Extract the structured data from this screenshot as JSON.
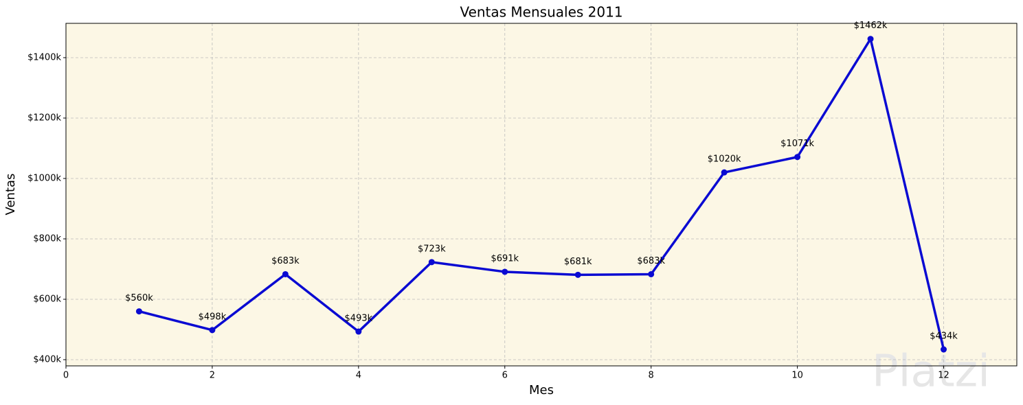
{
  "chart_data": {
    "type": "line",
    "title": "Ventas Mensuales 2011",
    "x_label": "Mes",
    "y_label": "Ventas",
    "x": [
      1,
      2,
      3,
      4,
      5,
      6,
      7,
      8,
      9,
      10,
      11,
      12
    ],
    "series": [
      {
        "name": "Ventas",
        "color": "#0a0ad2",
        "values": [
          560000,
          498000,
          683000,
          493000,
          723000,
          691000,
          681000,
          683000,
          1020000,
          1071000,
          1462000,
          434000
        ],
        "value_labels": [
          "$560k",
          "$498k",
          "$683k",
          "$493k",
          "$723k",
          "$691k",
          "$681k",
          "$683k",
          "$1020k",
          "$1071k",
          "$1462k",
          "$434k"
        ]
      }
    ],
    "xlim": [
      0,
      13
    ],
    "xticks": [
      0,
      2,
      4,
      6,
      8,
      10,
      12
    ],
    "ylim": [
      379500,
      1513600
    ],
    "yticks": [
      {
        "value": 400000,
        "label": "$400k"
      },
      {
        "value": 600000,
        "label": "$600k"
      },
      {
        "value": 800000,
        "label": "$800k"
      },
      {
        "value": 1000000,
        "label": "$1000k"
      },
      {
        "value": 1200000,
        "label": "$1200k"
      },
      {
        "value": 1400000,
        "label": "$1400k"
      }
    ],
    "grid": true,
    "background": "#fcf7e5",
    "watermark": "Platzi"
  }
}
